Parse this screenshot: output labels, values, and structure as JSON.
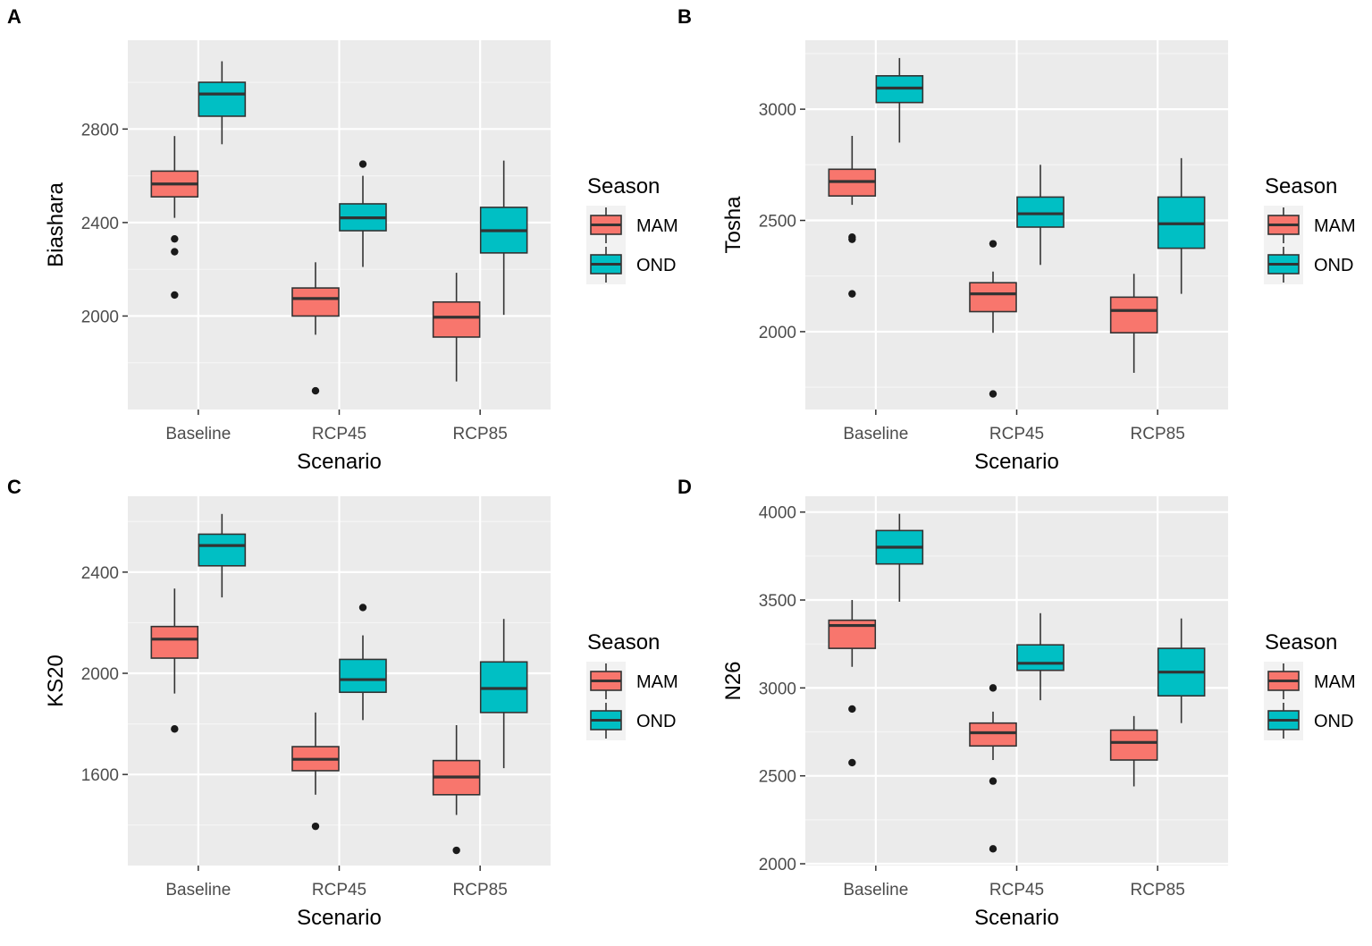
{
  "colors": {
    "panel_bg": "#EBEBEB",
    "grid_major": "#FFFFFF",
    "grid_minor": "#F5F5F5",
    "MAM": "#F8766D",
    "OND": "#00BFC4",
    "box_line": "#333333",
    "outlier": "#1A1A1A",
    "tick_text": "#4D4D4D",
    "legend_key_bg": "#F2F2F2"
  },
  "chart_data": [
    {
      "panel_label": "A",
      "type": "box",
      "xlabel": "Scenario",
      "ylabel": "Biashara",
      "ylim": [
        1600,
        3180
      ],
      "yticks": [
        2000,
        2400,
        2800
      ],
      "categories": [
        "Baseline",
        "RCP45",
        "RCP85"
      ],
      "legend": {
        "title": "Season",
        "items": [
          "MAM",
          "OND"
        ]
      },
      "series": [
        {
          "name": "MAM",
          "boxes": [
            {
              "min": 2420,
              "q1": 2510,
              "median": 2565,
              "q3": 2620,
              "max": 2770,
              "outliers": [
                2330,
                2275,
                2090
              ]
            },
            {
              "min": 1920,
              "q1": 2000,
              "median": 2075,
              "q3": 2120,
              "max": 2230,
              "outliers": [
                1680
              ]
            },
            {
              "min": 1720,
              "q1": 1910,
              "median": 1995,
              "q3": 2060,
              "max": 2185,
              "outliers": []
            }
          ]
        },
        {
          "name": "OND",
          "boxes": [
            {
              "min": 2735,
              "q1": 2855,
              "median": 2950,
              "q3": 3000,
              "max": 3090,
              "outliers": []
            },
            {
              "min": 2210,
              "q1": 2365,
              "median": 2420,
              "q3": 2480,
              "max": 2600,
              "outliers": [
                2650
              ]
            },
            {
              "min": 2005,
              "q1": 2270,
              "median": 2365,
              "q3": 2465,
              "max": 2665,
              "outliers": []
            }
          ]
        }
      ]
    },
    {
      "panel_label": "B",
      "type": "box",
      "xlabel": "Scenario",
      "ylabel": "Tosha",
      "ylim": [
        1650,
        3310
      ],
      "yticks": [
        2000,
        2500,
        3000
      ],
      "categories": [
        "Baseline",
        "RCP45",
        "RCP85"
      ],
      "legend": {
        "title": "Season",
        "items": [
          "MAM",
          "OND"
        ]
      },
      "series": [
        {
          "name": "MAM",
          "boxes": [
            {
              "min": 2570,
              "q1": 2610,
              "median": 2675,
              "q3": 2730,
              "max": 2880,
              "outliers": [
                2425,
                2415,
                2170
              ]
            },
            {
              "min": 1995,
              "q1": 2090,
              "median": 2170,
              "q3": 2220,
              "max": 2270,
              "outliers": [
                2395,
                1720
              ]
            },
            {
              "min": 1815,
              "q1": 1995,
              "median": 2095,
              "q3": 2155,
              "max": 2260,
              "outliers": []
            }
          ]
        },
        {
          "name": "OND",
          "boxes": [
            {
              "min": 2850,
              "q1": 3030,
              "median": 3095,
              "q3": 3150,
              "max": 3230,
              "outliers": []
            },
            {
              "min": 2300,
              "q1": 2470,
              "median": 2530,
              "q3": 2605,
              "max": 2750,
              "outliers": []
            },
            {
              "min": 2170,
              "q1": 2375,
              "median": 2485,
              "q3": 2605,
              "max": 2780,
              "outliers": []
            }
          ]
        }
      ]
    },
    {
      "panel_label": "C",
      "type": "box",
      "xlabel": "Scenario",
      "ylabel": "KS20",
      "ylim": [
        1240,
        2700
      ],
      "yticks": [
        1600,
        2000,
        2400
      ],
      "categories": [
        "Baseline",
        "RCP45",
        "RCP85"
      ],
      "legend": {
        "title": "Season",
        "items": [
          "MAM",
          "OND"
        ]
      },
      "series": [
        {
          "name": "MAM",
          "boxes": [
            {
              "min": 1920,
              "q1": 2060,
              "median": 2135,
              "q3": 2185,
              "max": 2335,
              "outliers": [
                1780
              ]
            },
            {
              "min": 1520,
              "q1": 1615,
              "median": 1660,
              "q3": 1710,
              "max": 1845,
              "outliers": [
                1395
              ]
            },
            {
              "min": 1440,
              "q1": 1520,
              "median": 1590,
              "q3": 1655,
              "max": 1795,
              "outliers": [
                1300
              ]
            }
          ]
        },
        {
          "name": "OND",
          "boxes": [
            {
              "min": 2300,
              "q1": 2425,
              "median": 2505,
              "q3": 2550,
              "max": 2630,
              "outliers": []
            },
            {
              "min": 1815,
              "q1": 1925,
              "median": 1975,
              "q3": 2055,
              "max": 2150,
              "outliers": [
                2260
              ]
            },
            {
              "min": 1625,
              "q1": 1845,
              "median": 1940,
              "q3": 2045,
              "max": 2215,
              "outliers": []
            }
          ]
        }
      ]
    },
    {
      "panel_label": "D",
      "type": "box",
      "xlabel": "Scenario",
      "ylabel": "N26",
      "ylim": [
        1990,
        4090
      ],
      "yticks": [
        2000,
        2500,
        3000,
        3500,
        4000
      ],
      "categories": [
        "Baseline",
        "RCP45",
        "RCP85"
      ],
      "legend": {
        "title": "Season",
        "items": [
          "MAM",
          "OND"
        ]
      },
      "series": [
        {
          "name": "MAM",
          "boxes": [
            {
              "min": 3120,
              "q1": 3225,
              "median": 3355,
              "q3": 3385,
              "max": 3500,
              "outliers": [
                2880,
                2575
              ]
            },
            {
              "min": 2590,
              "q1": 2670,
              "median": 2745,
              "q3": 2800,
              "max": 2865,
              "outliers": [
                3000,
                2470,
                2085
              ]
            },
            {
              "min": 2440,
              "q1": 2590,
              "median": 2690,
              "q3": 2760,
              "max": 2840,
              "outliers": []
            }
          ]
        },
        {
          "name": "OND",
          "boxes": [
            {
              "min": 3490,
              "q1": 3705,
              "median": 3800,
              "q3": 3895,
              "max": 3990,
              "outliers": []
            },
            {
              "min": 2930,
              "q1": 3100,
              "median": 3140,
              "q3": 3245,
              "max": 3425,
              "outliers": []
            },
            {
              "min": 2800,
              "q1": 2955,
              "median": 3090,
              "q3": 3225,
              "max": 3395,
              "outliers": []
            }
          ]
        }
      ]
    }
  ]
}
